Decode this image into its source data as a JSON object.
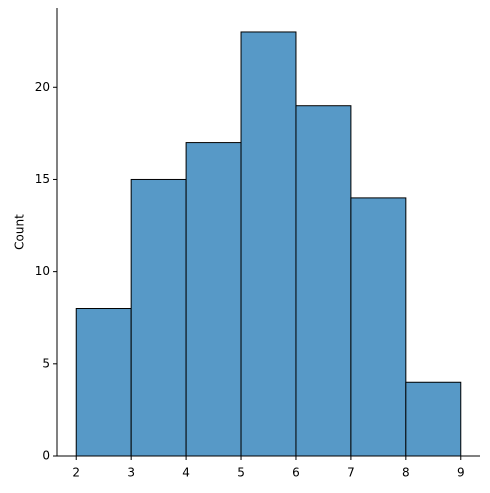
{
  "chart_data": {
    "type": "histogram",
    "ylabel": "Count",
    "bins": [
      2,
      3,
      4,
      5,
      6,
      7,
      8,
      9
    ],
    "values": [
      8,
      15,
      17,
      23,
      19,
      14,
      4
    ],
    "color": "#5799c7",
    "edgecolor": "#000000",
    "xlim": [
      1.65,
      9.35
    ],
    "ylim": [
      0,
      24.3
    ],
    "xticks": [
      2,
      3,
      4,
      5,
      6,
      7,
      8,
      9
    ],
    "yticks": [
      0,
      5,
      10,
      15,
      20
    ]
  }
}
